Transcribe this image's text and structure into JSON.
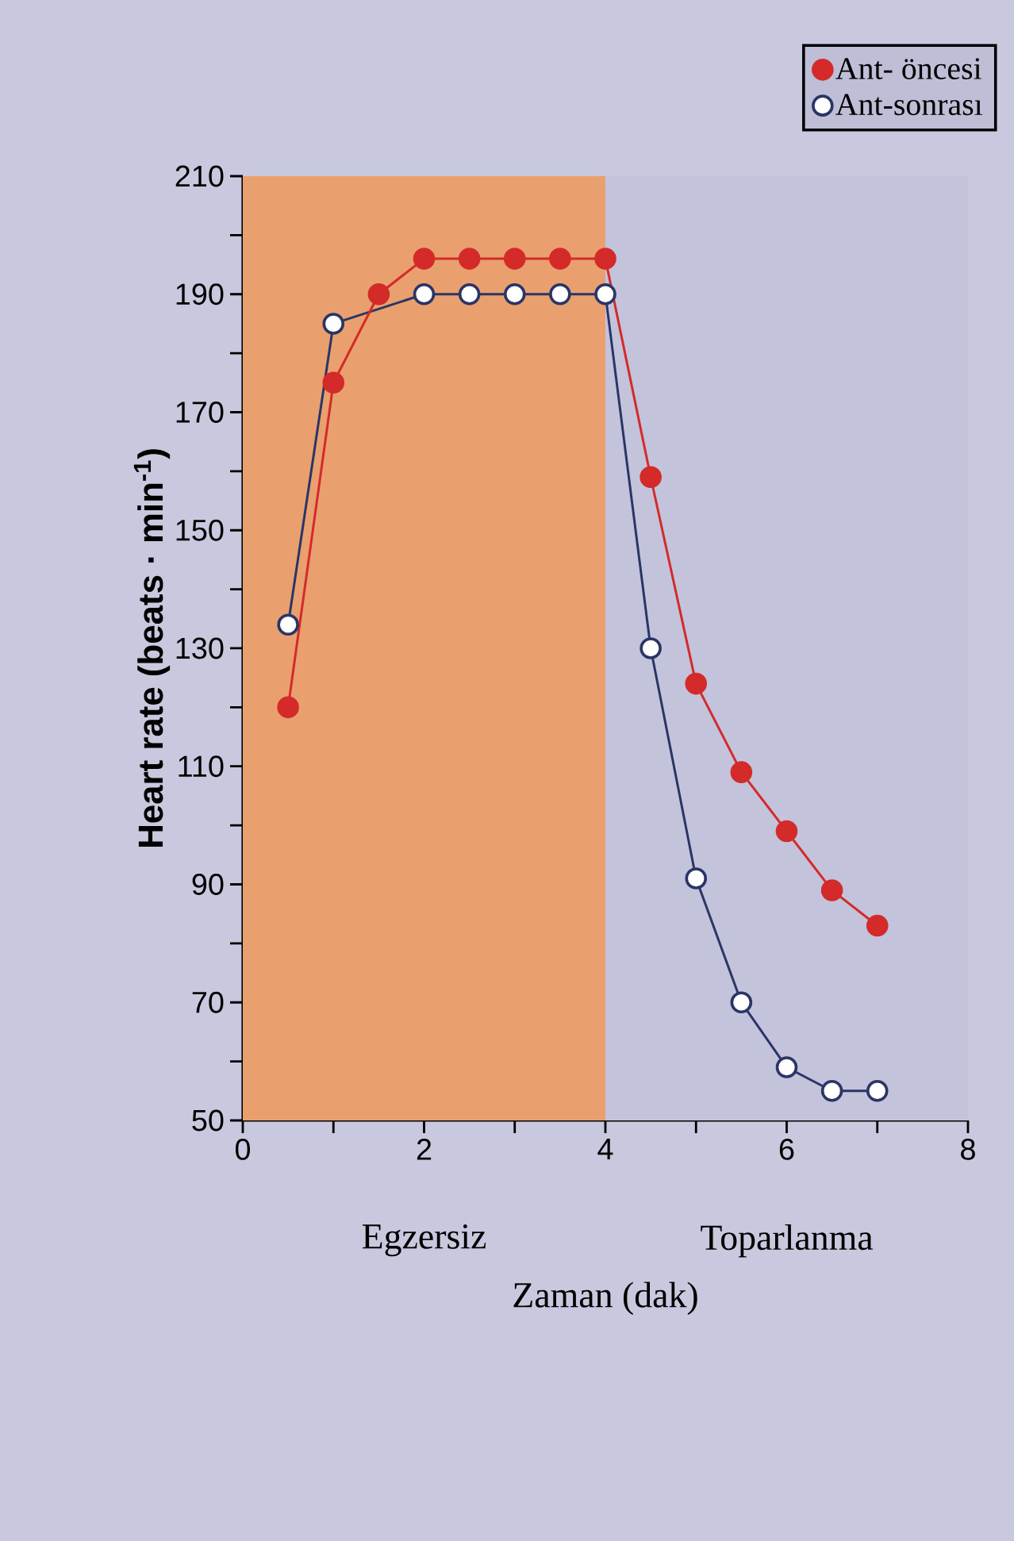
{
  "chart_data": {
    "type": "line",
    "ylabel": "Heart rate (beats · min$^{-1}$)",
    "xlabel": "Zaman (dak)",
    "x": [
      0.5,
      1,
      1.5,
      2,
      2.5,
      3,
      3.5,
      4,
      4.5,
      5,
      5.5,
      6,
      6.5,
      7
    ],
    "series": [
      {
        "name": "Ant- öncesi",
        "color": "#d42a2a",
        "values": [
          120,
          175,
          190,
          196,
          196,
          196,
          196,
          196,
          159,
          124,
          109,
          99,
          89,
          83
        ]
      },
      {
        "name": "Ant-sonrası",
        "color": "#2a3566",
        "values": [
          134,
          185,
          null,
          190,
          190,
          190,
          190,
          190,
          130,
          91,
          70,
          59,
          55,
          55
        ]
      }
    ],
    "bands": [
      {
        "axis": "x",
        "from": 0,
        "to": 4,
        "label": "Egzersiz",
        "color": "#e9a06e"
      },
      {
        "axis": "x",
        "from": 4,
        "to": 8,
        "label": "Toparlanma",
        "color": "#c3c3dc"
      }
    ],
    "xlim": [
      0,
      8
    ],
    "ylim": [
      50,
      210
    ],
    "xticks": [
      0,
      {
        "value": 1,
        "label": null
      },
      2,
      {
        "value": 3,
        "label": null
      },
      4,
      {
        "value": 5,
        "label": null
      },
      6,
      {
        "value": 7,
        "label": null
      },
      8
    ],
    "yticks": [
      50,
      {
        "value": 60,
        "label": null
      },
      70,
      {
        "value": 80,
        "label": null
      },
      90,
      {
        "value": 100,
        "label": null
      },
      110,
      {
        "value": 120,
        "label": null
      },
      130,
      {
        "value": 140,
        "label": null
      },
      150,
      {
        "value": 160,
        "label": null
      },
      170,
      {
        "value": 180,
        "label": null
      },
      190,
      {
        "value": 200,
        "label": null
      },
      210
    ],
    "marker": "circle",
    "legend": "top right"
  }
}
